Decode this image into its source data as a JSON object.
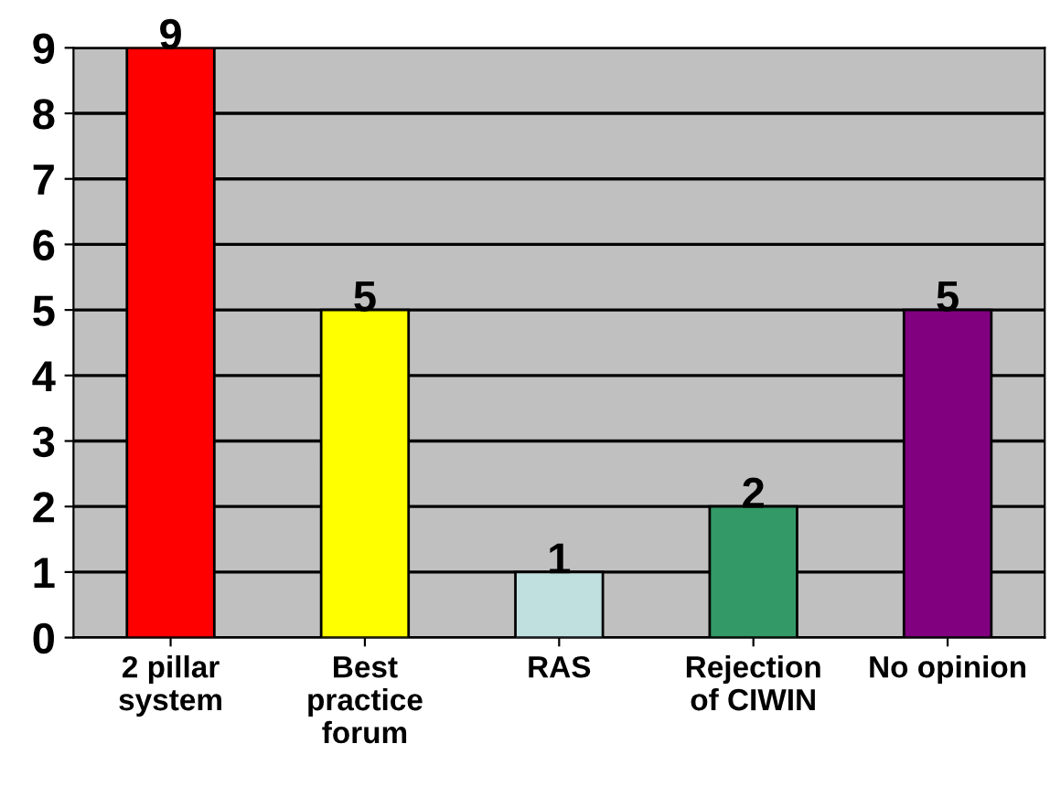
{
  "chart_data": {
    "type": "bar",
    "categories": [
      "2 pillar\nsystem",
      "Best\npractice\nforum",
      "RAS",
      "Rejection\nof CIWIN",
      "No opinion"
    ],
    "values": [
      9,
      5,
      1,
      2,
      5
    ],
    "colors": [
      "#ff0000",
      "#ffff00",
      "#c0e0e0",
      "#339966",
      "#800080"
    ],
    "ylim": [
      0,
      9
    ],
    "yticks": [
      0,
      1,
      2,
      3,
      4,
      5,
      6,
      7,
      8,
      9
    ],
    "grid": "y",
    "data_labels": true
  }
}
